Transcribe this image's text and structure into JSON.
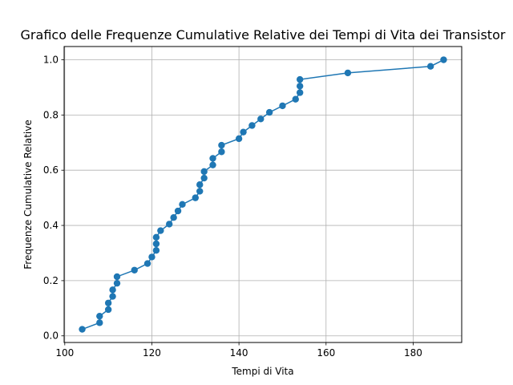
{
  "chart_data": {
    "type": "line",
    "title": "Grafico delle Frequenze Cumulative Relative dei Tempi di Vita dei Transistor",
    "xlabel": "Tempi di Vita",
    "ylabel": "Frequenze Cumulative Relative",
    "xlim": [
      99.85,
      191.15
    ],
    "ylim": [
      -0.024,
      1.048
    ],
    "grid": true,
    "xticks": [
      100,
      120,
      140,
      160,
      180
    ],
    "yticks": [
      0.0,
      0.2,
      0.4,
      0.6,
      0.8,
      1.0
    ],
    "xtick_labels": [
      "100",
      "120",
      "140",
      "160",
      "180"
    ],
    "ytick_labels": [
      "0.0",
      "0.2",
      "0.4",
      "0.6",
      "0.8",
      "1.0"
    ],
    "color": "#1f77b4",
    "series": [
      {
        "x": [
          104,
          108,
          108,
          110,
          110,
          111,
          111,
          112,
          112,
          116,
          119,
          120,
          121,
          121,
          121,
          122,
          124,
          125,
          126,
          127,
          130,
          131,
          131,
          132,
          132,
          134,
          134,
          136,
          136,
          140,
          141,
          143,
          145,
          147,
          150,
          153,
          154,
          154,
          154,
          165,
          184,
          187
        ],
        "y": [
          0.0238,
          0.0476,
          0.0714,
          0.0952,
          0.119,
          0.1429,
          0.1667,
          0.1905,
          0.2143,
          0.2381,
          0.2619,
          0.2857,
          0.3095,
          0.3333,
          0.3571,
          0.381,
          0.4048,
          0.4286,
          0.4524,
          0.4762,
          0.5,
          0.5238,
          0.5476,
          0.5714,
          0.5952,
          0.619,
          0.6429,
          0.6667,
          0.6905,
          0.7143,
          0.7381,
          0.7619,
          0.7857,
          0.8095,
          0.8333,
          0.8571,
          0.881,
          0.9048,
          0.9286,
          0.9524,
          0.9762,
          1.0
        ]
      }
    ]
  }
}
